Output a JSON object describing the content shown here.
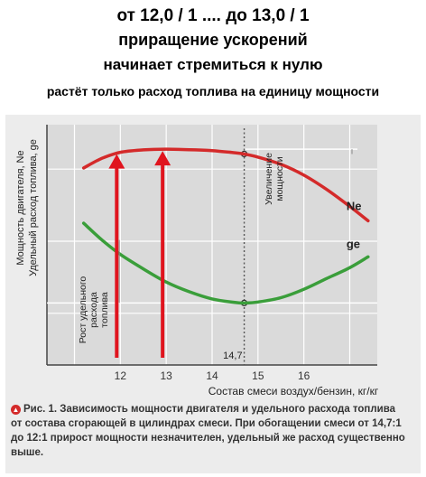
{
  "headline": {
    "line1": "от 12,0 / 1 .... до 13,0 / 1",
    "line2": "приращение   ускорений",
    "line3": "начинает стремиться к нулю",
    "line4": "растёт только расход топлива на единицу мощности"
  },
  "caption": {
    "text": "Рис. 1. Зависимость мощности двигателя и удельного расхода топлива от состава сгорающей в цилиндрах смеси. При обогащении смеси от 14,7:1 до 12:1 прирост мощности незначителен, удельный же расход существенно выше."
  },
  "colors": {
    "power_curve": "#d42a2a",
    "consumption_curve": "#3a9e3a",
    "arrow": "#e0141e",
    "grid": "#ffffff",
    "axis": "#444444"
  },
  "chart_data": {
    "type": "line",
    "xlabel": "Состав смеси воздух/бензин, кг/кг",
    "ylabel": "Мощность двигателя, Ne\nУдельный расход топлива, ge",
    "xlim": [
      10.4,
      17.6
    ],
    "ylim": [
      0,
      100
    ],
    "x_ticks": [
      "12",
      "13",
      "14",
      "15",
      "16"
    ],
    "x_tick_values": [
      12,
      13,
      14,
      15,
      16
    ],
    "grid": true,
    "series": [
      {
        "name": "Ne",
        "x": [
          11.2,
          11.6,
          12.0,
          12.5,
          13.0,
          13.5,
          14.0,
          14.5,
          14.7,
          15.0,
          15.5,
          16.0,
          16.5,
          17.0,
          17.4
        ],
        "y": [
          82,
          86,
          88.5,
          89.5,
          89.8,
          89.6,
          89.2,
          88.3,
          87.8,
          86.5,
          83.5,
          79,
          73,
          66,
          60
        ]
      },
      {
        "name": "ge",
        "x": [
          11.2,
          11.6,
          12.0,
          12.5,
          13.0,
          13.5,
          14.0,
          14.5,
          14.7,
          15.0,
          15.5,
          16.0,
          16.5,
          17.0,
          17.4
        ],
        "y": [
          59,
          52,
          46,
          40,
          34.5,
          30.5,
          27.5,
          26,
          25.8,
          26.2,
          28,
          31.5,
          36,
          40.5,
          45
        ]
      }
    ],
    "annotations": [
      {
        "text": "14,7",
        "x": 14.7
      },
      {
        "text": "Увеличение\nмощности"
      },
      {
        "text": "Рост удельного\nрасхода\nтоплива"
      }
    ],
    "arrows_at_x": [
      12.0,
      13.0
    ]
  }
}
